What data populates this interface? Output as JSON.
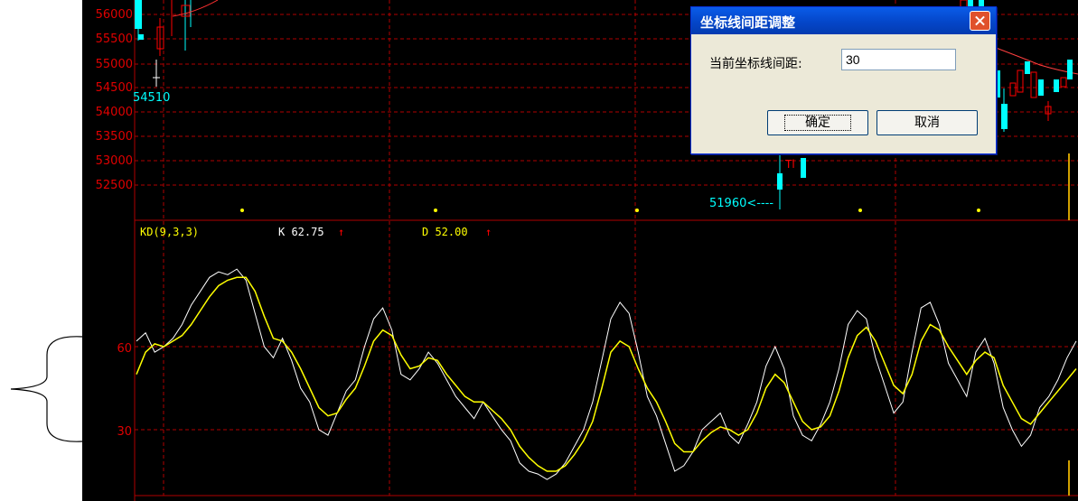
{
  "price_panel": {
    "y_labels": [
      "56000",
      "55500",
      "55000",
      "54500",
      "54000",
      "53500",
      "53000",
      "52500"
    ],
    "low_marker": "54510",
    "min_marker": "51960<----",
    "signal_tag": "Tl"
  },
  "kd_panel": {
    "title": "KD(9,3,3)",
    "k_label": "K  62.75",
    "d_label": "D  52.00",
    "arrow": "↑",
    "y_labels": [
      "60",
      "30"
    ],
    "k_color": "#ffffff",
    "d_color": "#ffff00"
  },
  "dialog": {
    "title": "坐标线间距调整",
    "field_label": "当前坐标线间距:",
    "field_value": "30",
    "ok_label": "确定",
    "cancel_label": "取消"
  },
  "colors": {
    "background": "#000000",
    "grid": "#b00000",
    "axis_text": "#e00000",
    "up_candle": "#ff0000",
    "down_candle": "#00ffff"
  },
  "chart_data": [
    {
      "type": "line",
      "title": "KD(9,3,3)",
      "ylim": [
        8,
        95
      ],
      "series": [
        {
          "name": "K",
          "values": [
            62,
            65,
            58,
            60,
            63,
            68,
            75,
            80,
            85,
            87,
            86,
            88,
            84,
            72,
            60,
            56,
            63,
            55,
            45,
            40,
            30,
            28,
            36,
            44,
            48,
            60,
            70,
            74,
            66,
            50,
            48,
            52,
            58,
            54,
            48,
            42,
            38,
            34,
            40,
            35,
            30,
            26,
            18,
            15,
            14,
            12,
            14,
            18,
            24,
            30,
            40,
            55,
            70,
            76,
            72,
            58,
            42,
            35,
            25,
            15,
            17,
            22,
            30,
            33,
            36,
            28,
            25,
            32,
            40,
            53,
            60,
            52,
            35,
            28,
            26,
            32,
            40,
            52,
            68,
            73,
            70,
            56,
            46,
            36,
            40,
            58,
            74,
            76,
            68,
            54,
            48,
            42,
            58,
            63,
            54,
            38,
            30,
            24,
            28,
            38,
            42,
            48,
            56,
            62
          ]
        },
        {
          "name": "D",
          "values": [
            50,
            58,
            61,
            60,
            62,
            64,
            68,
            73,
            78,
            82,
            84,
            85,
            85,
            80,
            71,
            63,
            62,
            58,
            52,
            45,
            38,
            35,
            36,
            41,
            45,
            53,
            62,
            66,
            64,
            57,
            52,
            53,
            56,
            55,
            50,
            46,
            42,
            40,
            40,
            37,
            34,
            30,
            24,
            20,
            17,
            15,
            15,
            17,
            21,
            26,
            33,
            45,
            58,
            62,
            60,
            52,
            45,
            40,
            33,
            25,
            22,
            22,
            26,
            29,
            31,
            30,
            28,
            30,
            36,
            45,
            50,
            47,
            40,
            33,
            30,
            31,
            35,
            44,
            56,
            64,
            67,
            62,
            54,
            46,
            43,
            50,
            62,
            68,
            66,
            60,
            55,
            50,
            55,
            58,
            56,
            46,
            40,
            34,
            32,
            36,
            40,
            44,
            48,
            52
          ]
        }
      ]
    }
  ]
}
